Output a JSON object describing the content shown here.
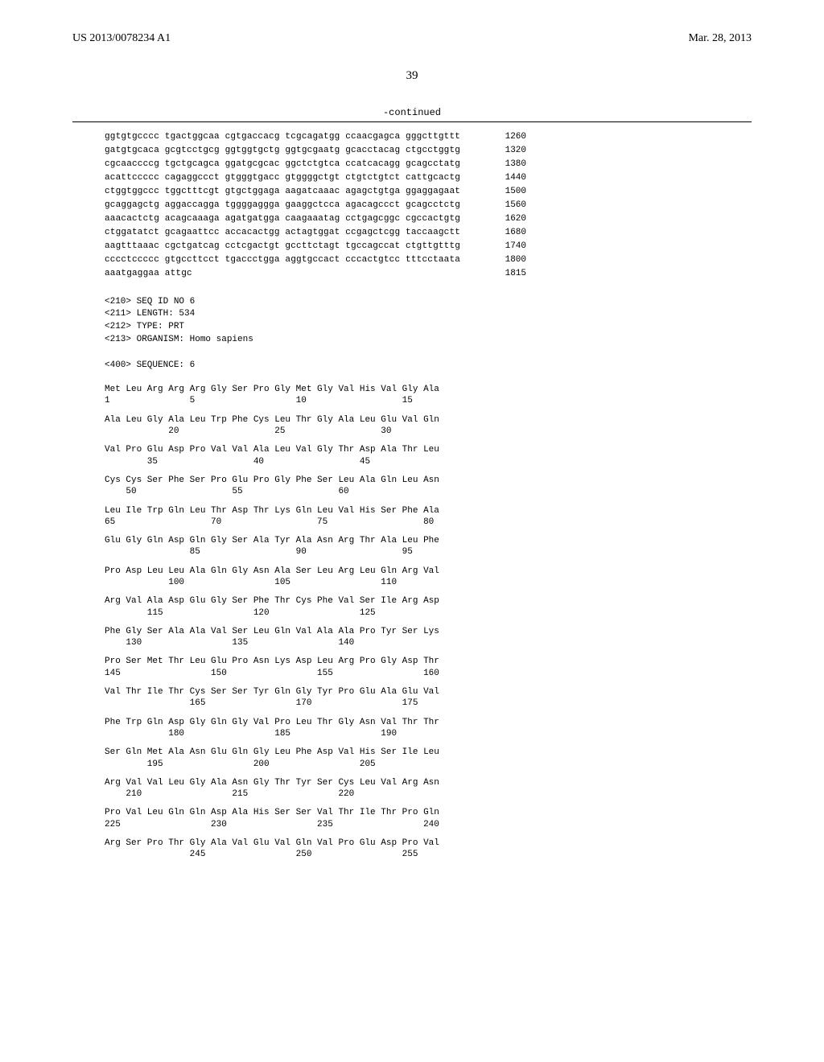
{
  "header": {
    "pub_number": "US 2013/0078234 A1",
    "pub_date": "Mar. 28, 2013"
  },
  "page_number": "39",
  "continued_label": "-continued",
  "nucleotide_lines": [
    {
      "seq": "ggtgtgcccc tgactggcaa cgtgaccacg tcgcagatgg ccaacgagca gggcttgttt",
      "num": "1260"
    },
    {
      "seq": "gatgtgcaca gcgtcctgcg ggtggtgctg ggtgcgaatg gcacctacag ctgcctggtg",
      "num": "1320"
    },
    {
      "seq": "cgcaaccccg tgctgcagca ggatgcgcac ggctctgtca ccatcacagg gcagcctatg",
      "num": "1380"
    },
    {
      "seq": "acattccccc cagaggccct gtgggtgacc gtggggctgt ctgtctgtct cattgcactg",
      "num": "1440"
    },
    {
      "seq": "ctggtggccc tggctttcgt gtgctggaga aagatcaaac agagctgtga ggaggagaat",
      "num": "1500"
    },
    {
      "seq": "gcaggagctg aggaccagga tggggaggga gaaggctcca agacagccct gcagcctctg",
      "num": "1560"
    },
    {
      "seq": "aaacactctg acagcaaaga agatgatgga caagaaatag cctgagcggc cgccactgtg",
      "num": "1620"
    },
    {
      "seq": "ctggatatct gcagaattcc accacactgg actagtggat ccgagctcgg taccaagctt",
      "num": "1680"
    },
    {
      "seq": "aagtttaaac cgctgatcag cctcgactgt gccttctagt tgccagccat ctgttgtttg",
      "num": "1740"
    },
    {
      "seq": "cccctccccc gtgccttcct tgaccctgga aggtgccact cccactgtcc tttcctaata",
      "num": "1800"
    },
    {
      "seq": "aaatgaggaa attgc",
      "num": "1815"
    }
  ],
  "meta": {
    "line1": "<210> SEQ ID NO 6",
    "line2": "<211> LENGTH: 534",
    "line3": "<212> TYPE: PRT",
    "line4": "<213> ORGANISM: Homo sapiens",
    "line5": "<400> SEQUENCE: 6"
  },
  "protein_rows": [
    {
      "aa": "Met Leu Arg Arg Arg Gly Ser Pro Gly Met Gly Val His Val Gly Ala",
      "nums": "1               5                   10                  15"
    },
    {
      "aa": "Ala Leu Gly Ala Leu Trp Phe Cys Leu Thr Gly Ala Leu Glu Val Gln",
      "nums": "            20                  25                  30"
    },
    {
      "aa": "Val Pro Glu Asp Pro Val Val Ala Leu Val Gly Thr Asp Ala Thr Leu",
      "nums": "        35                  40                  45"
    },
    {
      "aa": "Cys Cys Ser Phe Ser Pro Glu Pro Gly Phe Ser Leu Ala Gln Leu Asn",
      "nums": "    50                  55                  60"
    },
    {
      "aa": "Leu Ile Trp Gln Leu Thr Asp Thr Lys Gln Leu Val His Ser Phe Ala",
      "nums": "65                  70                  75                  80"
    },
    {
      "aa": "Glu Gly Gln Asp Gln Gly Ser Ala Tyr Ala Asn Arg Thr Ala Leu Phe",
      "nums": "                85                  90                  95"
    },
    {
      "aa": "Pro Asp Leu Leu Ala Gln Gly Asn Ala Ser Leu Arg Leu Gln Arg Val",
      "nums": "            100                 105                 110"
    },
    {
      "aa": "Arg Val Ala Asp Glu Gly Ser Phe Thr Cys Phe Val Ser Ile Arg Asp",
      "nums": "        115                 120                 125"
    },
    {
      "aa": "Phe Gly Ser Ala Ala Val Ser Leu Gln Val Ala Ala Pro Tyr Ser Lys",
      "nums": "    130                 135                 140"
    },
    {
      "aa": "Pro Ser Met Thr Leu Glu Pro Asn Lys Asp Leu Arg Pro Gly Asp Thr",
      "nums": "145                 150                 155                 160"
    },
    {
      "aa": "Val Thr Ile Thr Cys Ser Ser Tyr Gln Gly Tyr Pro Glu Ala Glu Val",
      "nums": "                165                 170                 175"
    },
    {
      "aa": "Phe Trp Gln Asp Gly Gln Gly Val Pro Leu Thr Gly Asn Val Thr Thr",
      "nums": "            180                 185                 190"
    },
    {
      "aa": "Ser Gln Met Ala Asn Glu Gln Gly Leu Phe Asp Val His Ser Ile Leu",
      "nums": "        195                 200                 205"
    },
    {
      "aa": "Arg Val Val Leu Gly Ala Asn Gly Thr Tyr Ser Cys Leu Val Arg Asn",
      "nums": "    210                 215                 220"
    },
    {
      "aa": "Pro Val Leu Gln Gln Asp Ala His Ser Ser Val Thr Ile Thr Pro Gln",
      "nums": "225                 230                 235                 240"
    },
    {
      "aa": "Arg Ser Pro Thr Gly Ala Val Glu Val Gln Val Pro Glu Asp Pro Val",
      "nums": "                245                 250                 255"
    }
  ]
}
